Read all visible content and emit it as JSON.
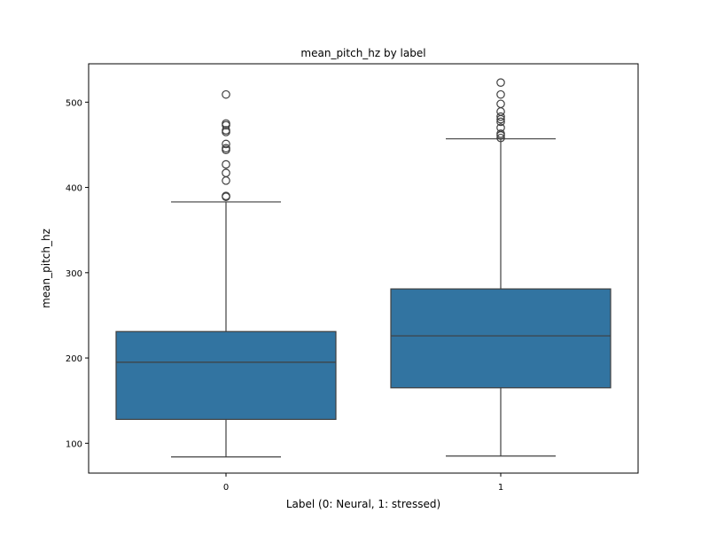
{
  "chart_data": {
    "type": "box",
    "title": "mean_pitch_hz by label",
    "xlabel": "Label (0: Neural, 1: stressed)",
    "ylabel": "mean_pitch_hz",
    "categories": [
      "0",
      "1"
    ],
    "ylim": [
      65,
      545
    ],
    "yticks": [
      100,
      200,
      300,
      400,
      500
    ],
    "grid": false,
    "box_color": "#3274a1",
    "line_color": "#3f3f3f",
    "boxes": [
      {
        "category": "0",
        "whisker_low": 84,
        "q1": 128,
        "median": 195,
        "q3": 231,
        "whisker_high": 383,
        "outliers": [
          389,
          390,
          408,
          417,
          427,
          444,
          446,
          451,
          465,
          467,
          473,
          475,
          509
        ]
      },
      {
        "category": "1",
        "whisker_low": 85,
        "q1": 165,
        "median": 226,
        "q3": 281,
        "whisker_high": 457,
        "outliers": [
          458,
          461,
          463,
          470,
          477,
          480,
          483,
          489,
          498,
          509,
          523
        ]
      }
    ]
  }
}
